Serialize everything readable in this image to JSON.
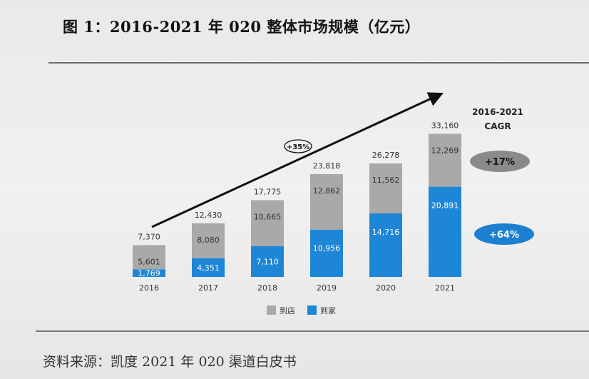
{
  "title": "图 1：2016-2021 年 020 整体市场规模（亿元）",
  "source": "资料来源：凯度 2021 年 020 渠道白皮书",
  "colors": {
    "store": "#a9a9a9",
    "home": "#1e86d6",
    "arrow": "#111111",
    "bubble_grey": "#8a8a8a",
    "bubble_blue": "#1c7fd0"
  },
  "chart_data": {
    "type": "bar",
    "stacked": true,
    "categories": [
      "2016",
      "2017",
      "2018",
      "2019",
      "2020",
      "2021"
    ],
    "series": [
      {
        "name": "到家",
        "values": [
          1769,
          4351,
          7110,
          10956,
          14716,
          20891
        ]
      },
      {
        "name": "到店",
        "values": [
          5601,
          8080,
          10665,
          12862,
          11562,
          12269
        ]
      }
    ],
    "totals": [
      "7,370",
      "12,430",
      "17,775",
      "23,818",
      "26,278",
      "33,160"
    ],
    "store_labels": [
      "5,601",
      "8,080",
      "10,665",
      "12,862",
      "11,562",
      "12,269"
    ],
    "home_labels": [
      "1,769",
      "4,351",
      "7,110",
      "10,956",
      "14,716",
      "20,891"
    ],
    "trend_label": "+35%",
    "cagr_title_line1": "2016-2021",
    "cagr_title_line2": "CAGR",
    "cagr_store": "+17%",
    "cagr_home": "+64%",
    "legend": [
      "到店",
      "到家"
    ],
    "legend_placement": "bottom-center",
    "grid": false
  }
}
